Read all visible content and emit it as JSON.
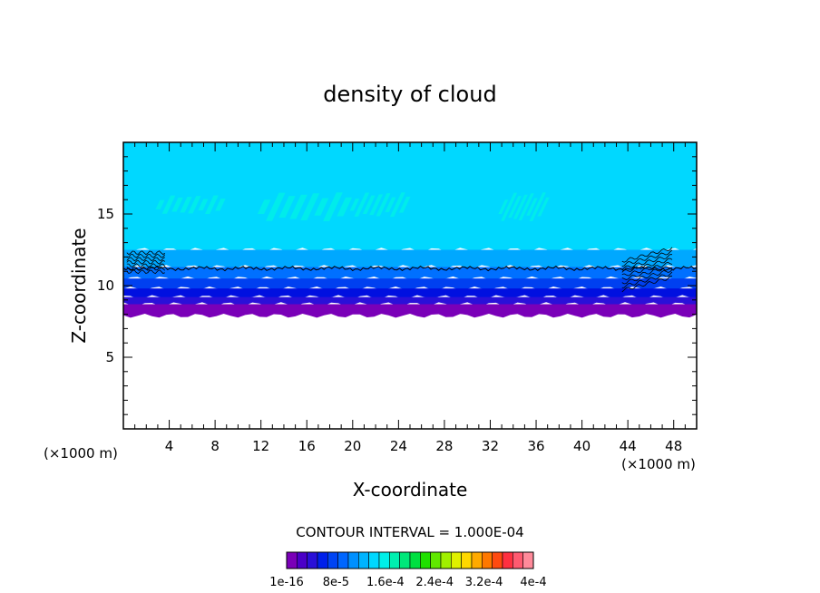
{
  "chart_data": {
    "type": "heatmap",
    "title": "density of cloud",
    "xlabel": "X-coordinate",
    "ylabel": "Z-coordinate",
    "x_unit_left": "(×1000 m)",
    "x_unit_right": "(×1000 m)",
    "xlim": [
      0,
      50
    ],
    "ylim": [
      0,
      20
    ],
    "x_ticks": [
      4,
      8,
      12,
      16,
      20,
      24,
      28,
      32,
      36,
      40,
      44,
      48
    ],
    "y_ticks": [
      5,
      10,
      15
    ],
    "contour_interval_label": "CONTOUR INTERVAL = 1.000E-04",
    "colorbar": {
      "labels": [
        "1e-16",
        "8e-5",
        "1.6e-4",
        "2.4e-4",
        "3.2e-4",
        "4e-4"
      ],
      "colors": [
        "#7a00b8",
        "#4b00c8",
        "#2a10d8",
        "#0020ea",
        "#0044f4",
        "#0066ff",
        "#0090ff",
        "#00b4ff",
        "#00d8ff",
        "#00f0e8",
        "#00f0b0",
        "#00e87a",
        "#00e040",
        "#20e000",
        "#60e800",
        "#a0f000",
        "#e0f000",
        "#ffd800",
        "#ffaa00",
        "#ff7800",
        "#ff4a10",
        "#ff3040",
        "#ff5a70",
        "#ff8a9a"
      ]
    },
    "cloud_layer": {
      "z_base": 7.9,
      "z_top": 20,
      "contour_line_z": 11.2,
      "legend_levels": [
        {
          "z_from": 7.9,
          "z_to": 8.7,
          "color": "#7a00b8"
        },
        {
          "z_from": 8.7,
          "z_to": 9.2,
          "color": "#2a10d8"
        },
        {
          "z_from": 9.2,
          "z_to": 9.8,
          "color": "#0010e0"
        },
        {
          "z_from": 9.8,
          "z_to": 10.5,
          "color": "#0040f0"
        },
        {
          "z_from": 10.5,
          "z_to": 11.3,
          "color": "#0070ff"
        },
        {
          "z_from": 11.3,
          "z_to": 12.5,
          "color": "#00a8ff"
        },
        {
          "z_from": 12.5,
          "z_to": 20,
          "color": "#00d8ff"
        }
      ],
      "patches": [
        {
          "x": [
            12,
            20
          ],
          "z": [
            14.5,
            16.5
          ],
          "color": "#00f0e8"
        },
        {
          "x": [
            20,
            25
          ],
          "z": [
            14.8,
            16.5
          ],
          "color": "#00f0e8"
        },
        {
          "x": [
            33,
            37
          ],
          "z": [
            14.5,
            16.5
          ],
          "color": "#00f0e8"
        },
        {
          "x": [
            3,
            9
          ],
          "z": [
            15,
            16.3
          ],
          "color": "#00f0e8"
        }
      ]
    }
  }
}
